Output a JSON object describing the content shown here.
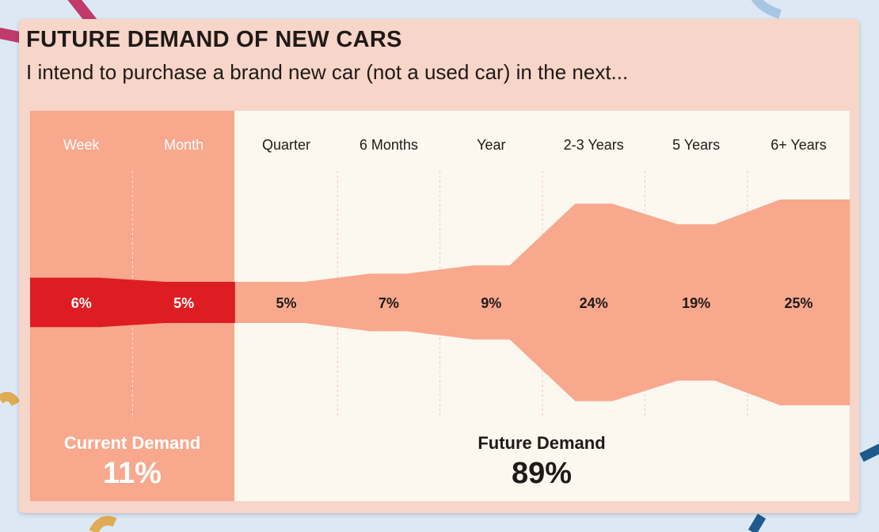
{
  "title": "FUTURE DEMAND OF NEW CARS",
  "subtitle": "I intend to purchase a brand new car (not a used car) in the next...",
  "chart_data": {
    "type": "area",
    "title": "FUTURE DEMAND OF NEW CARS",
    "subtitle": "I intend to purchase a brand new car (not a used car) in the next...",
    "categories": [
      "Week",
      "Month",
      "Quarter",
      "6 Months",
      "Year",
      "2-3 Years",
      "5 Years",
      "6+ Years"
    ],
    "values": [
      6,
      5,
      5,
      7,
      9,
      24,
      19,
      25
    ],
    "value_labels": [
      "6%",
      "5%",
      "5%",
      "7%",
      "9%",
      "24%",
      "19%",
      "25%"
    ],
    "groups": [
      {
        "name": "Current Demand",
        "value": "11%",
        "categories": [
          "Week",
          "Month"
        ]
      },
      {
        "name": "Future Demand",
        "value": "89%",
        "categories": [
          "Quarter",
          "6 Months",
          "Year",
          "2-3 Years",
          "5 Years",
          "6+ Years"
        ]
      }
    ],
    "colors": {
      "current_stream": "#dd1d22",
      "future_stream": "#f8a88d",
      "current_panel": "#f8a88d",
      "future_panel": "#fcf8ef"
    }
  }
}
